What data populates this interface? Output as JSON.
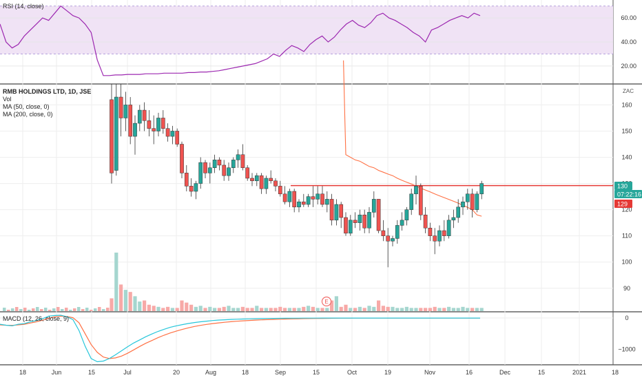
{
  "chart_data": {
    "type": "candlestick",
    "colors": {
      "up": "#26a69a",
      "down": "#ef5350",
      "up_vol": "#a5d6cf",
      "down_vol": "#f7a9a7",
      "rsi_line": "#9c27b0",
      "rsi_band": "#f0e3f5",
      "ma50": "#ff7043",
      "hline": "#e53935",
      "macd": "#26c6da",
      "signal": "#ff7043",
      "last_price_bg": "#26a69a",
      "timer_bg": "#26a69a",
      "prev_bg": "#e53935"
    },
    "main": {
      "legend_title": "RMB HOLDINGS LTD, 1D, JSE",
      "legend_vol": "Vol",
      "legend_ma50": "MA (50, close, 0)",
      "legend_ma200": "MA (200, close, 0)",
      "currency": "ZAC",
      "y_ticks": [
        "160",
        "150",
        "140",
        "130",
        "120",
        "110",
        "100",
        "90"
      ],
      "ylim": [
        81,
        168
      ],
      "horizontal_line": 129.2,
      "last_price": "130",
      "timer": "07:22:16",
      "prev_price": "129",
      "earnings_marker": "E",
      "candles": [
        [
          162,
          169,
          130,
          134
        ],
        [
          135,
          169,
          133,
          163
        ],
        [
          163,
          169,
          148,
          155
        ],
        [
          155,
          165,
          150,
          160
        ],
        [
          160,
          163,
          145,
          148
        ],
        [
          148,
          156,
          141,
          153
        ],
        [
          153,
          160,
          150,
          158
        ],
        [
          158,
          161,
          150,
          154
        ],
        [
          154,
          158,
          148,
          151
        ],
        [
          151,
          156,
          145,
          150
        ],
        [
          150,
          157,
          148,
          155
        ],
        [
          155,
          158,
          149,
          151
        ],
        [
          151,
          153,
          146,
          148
        ],
        [
          148,
          152,
          145,
          150
        ],
        [
          150,
          151,
          144,
          145
        ],
        [
          145,
          146,
          132,
          134
        ],
        [
          134,
          137,
          127,
          129
        ],
        [
          129,
          132,
          125,
          127
        ],
        [
          127,
          131,
          124,
          130
        ],
        [
          130,
          140,
          128,
          138
        ],
        [
          138,
          139,
          132,
          134
        ],
        [
          134,
          138,
          130,
          136
        ],
        [
          136,
          141,
          134,
          139
        ],
        [
          139,
          140,
          135,
          137
        ],
        [
          137,
          139,
          131,
          133
        ],
        [
          133,
          138,
          131,
          136
        ],
        [
          136,
          140,
          134,
          139
        ],
        [
          139,
          143,
          136,
          141
        ],
        [
          141,
          145,
          135,
          136
        ],
        [
          136,
          137,
          131,
          132
        ],
        [
          132,
          134,
          129,
          131
        ],
        [
          131,
          134,
          129,
          133
        ],
        [
          133,
          134,
          126,
          128
        ],
        [
          128,
          133,
          126,
          132
        ],
        [
          132,
          135,
          130,
          131
        ],
        [
          131,
          132,
          127,
          129
        ],
        [
          129,
          131,
          125,
          126
        ],
        [
          126,
          129,
          122,
          123
        ],
        [
          123,
          128,
          121,
          127
        ],
        [
          127,
          128,
          119,
          121
        ],
        [
          121,
          124,
          119,
          123
        ],
        [
          123,
          126,
          121,
          122
        ],
        [
          122,
          126,
          121,
          125
        ],
        [
          125,
          129,
          121,
          124
        ],
        [
          124,
          129,
          122,
          126
        ],
        [
          126,
          129,
          121,
          122
        ],
        [
          122,
          127,
          119,
          124
        ],
        [
          124,
          126,
          114,
          116
        ],
        [
          116,
          124,
          114,
          122
        ],
        [
          122,
          123,
          113,
          117
        ],
        [
          117,
          119,
          110,
          111
        ],
        [
          111,
          118,
          110,
          116
        ],
        [
          116,
          119,
          113,
          115
        ],
        [
          115,
          120,
          112,
          118
        ],
        [
          118,
          120,
          111,
          113
        ],
        [
          113,
          121,
          111,
          119
        ],
        [
          119,
          127,
          117,
          124
        ],
        [
          124,
          124,
          111,
          112
        ],
        [
          112,
          116,
          108,
          110
        ],
        [
          110,
          113,
          98,
          108
        ],
        [
          108,
          110,
          106,
          109
        ],
        [
          109,
          116,
          107,
          114
        ],
        [
          114,
          119,
          112,
          116
        ],
        [
          116,
          121,
          114,
          120
        ],
        [
          120,
          128,
          118,
          126
        ],
        [
          126,
          133,
          122,
          129
        ],
        [
          129,
          130,
          116,
          118
        ],
        [
          118,
          121,
          111,
          113
        ],
        [
          113,
          115,
          108,
          110
        ],
        [
          110,
          113,
          103,
          108
        ],
        [
          108,
          114,
          106,
          112
        ],
        [
          112,
          116,
          108,
          110
        ],
        [
          110,
          118,
          109,
          116
        ],
        [
          116,
          120,
          113,
          117
        ],
        [
          117,
          124,
          115,
          121
        ],
        [
          121,
          125,
          118,
          123
        ],
        [
          123,
          128,
          120,
          126
        ],
        [
          126,
          128,
          117,
          120
        ],
        [
          120,
          127,
          119,
          126
        ],
        [
          126,
          131,
          124,
          130
        ]
      ],
      "volumes": [
        12,
        55,
        25,
        20,
        18,
        14,
        9,
        10,
        6,
        5,
        4,
        3,
        4,
        3,
        3,
        10,
        8,
        6,
        4,
        5,
        3,
        4,
        3,
        3,
        4,
        5,
        3,
        3,
        4,
        3,
        3,
        5,
        3,
        3,
        3,
        3,
        4,
        3,
        3,
        3,
        3,
        4,
        5,
        4,
        3,
        3,
        3,
        10,
        14,
        4,
        6,
        3,
        3,
        4,
        3,
        5,
        4,
        10,
        5,
        4,
        4,
        3,
        3,
        4,
        3,
        3,
        3,
        3,
        3,
        4,
        3,
        3,
        4,
        3,
        3,
        4,
        3,
        3,
        3,
        3
      ],
      "vol_max": 55,
      "ma50": [
        null,
        null,
        null,
        null,
        null,
        null,
        null,
        null,
        null,
        null,
        null,
        null,
        null,
        null,
        null,
        null,
        null,
        null,
        null,
        null,
        null,
        null,
        null,
        null,
        null,
        null,
        null,
        null,
        null,
        null,
        null,
        null,
        null,
        null,
        null,
        null,
        null,
        null,
        null,
        null,
        null,
        null,
        null,
        null,
        null,
        null,
        null,
        null,
        null,
        null,
        141,
        140,
        139,
        138.5,
        137.5,
        136.5,
        136,
        135,
        134.3,
        133.6,
        133,
        132,
        131.2,
        130.5,
        129.8,
        129,
        128.2,
        127.5,
        126.8,
        126,
        125.3,
        124.6,
        123.9,
        123.2,
        122.5,
        121.7,
        120.9,
        120,
        118,
        117.5
      ],
      "ma50_spike": [
        177,
        155
      ]
    },
    "rsi": {
      "legend": "RSI (14, close)",
      "y_ticks": [
        "60.00",
        "40.00",
        "20.00"
      ],
      "ylim": [
        5,
        75
      ],
      "band": [
        30,
        70
      ],
      "values": [
        55,
        40,
        35,
        38,
        45,
        50,
        55,
        60,
        58,
        64,
        70,
        66,
        62,
        60,
        55,
        48,
        25,
        12,
        12,
        12.5,
        12.5,
        13,
        13,
        13,
        13.5,
        13.5,
        13.5,
        14,
        14,
        14,
        14,
        14.5,
        14.5,
        15,
        15,
        15.5,
        16,
        17,
        18,
        19,
        20,
        21,
        22,
        24,
        26,
        30,
        28,
        33,
        37,
        35,
        32,
        38,
        42,
        45,
        40,
        44,
        50,
        55,
        58,
        54,
        52,
        56,
        62,
        64,
        60,
        58,
        55,
        52,
        48,
        45,
        40,
        50,
        52,
        55,
        58,
        60,
        62,
        60,
        64,
        62
      ]
    },
    "macd": {
      "legend": "MACD (12, 26, close, 9)",
      "y_ticks": [
        "0",
        "−1000"
      ],
      "ylim": [
        -1500,
        200
      ],
      "macd": [
        -200,
        -230,
        -250,
        -200,
        -180,
        -120,
        -80,
        -20,
        60,
        80,
        90,
        40,
        -50,
        -400,
        -900,
        -1300,
        -1400,
        -1380,
        -1300,
        -1180,
        -1050,
        -920,
        -800,
        -700,
        -600,
        -510,
        -430,
        -360,
        -300,
        -250,
        -210,
        -175,
        -145,
        -120,
        -100,
        -80,
        -65,
        -55,
        -45,
        -38,
        -32,
        -27,
        -22,
        -18,
        -14,
        -11,
        -9,
        -7,
        -6,
        -5,
        -4,
        -3,
        -3,
        -2,
        -2,
        -1,
        -1,
        0,
        0,
        0,
        0,
        0,
        0,
        0,
        0,
        0,
        0,
        0,
        0,
        0,
        0,
        0,
        0,
        0,
        0,
        0,
        0,
        0,
        0,
        0
      ],
      "signal": [
        -220,
        -230,
        -235,
        -220,
        -200,
        -160,
        -120,
        -70,
        -10,
        40,
        60,
        50,
        10,
        -150,
        -500,
        -850,
        -1100,
        -1250,
        -1300,
        -1280,
        -1220,
        -1130,
        -1020,
        -910,
        -810,
        -720,
        -630,
        -550,
        -480,
        -420,
        -365,
        -315,
        -270,
        -235,
        -205,
        -178,
        -155,
        -135,
        -118,
        -103,
        -90,
        -78,
        -68,
        -59,
        -51,
        -44,
        -38,
        -32,
        -27,
        -23,
        -19,
        -16,
        -13,
        -11,
        -9,
        -7,
        -6,
        -5,
        -4,
        -3,
        -2,
        -2,
        -1,
        -1,
        0,
        0,
        0,
        0,
        0,
        0,
        0,
        0,
        0,
        0,
        0,
        0,
        0,
        0,
        0,
        0
      ]
    },
    "x_labels": [
      "18",
      "Jun",
      "15",
      "Jul",
      "20",
      "Aug",
      "18",
      "Sep",
      "15",
      "Oct",
      "19",
      "Nov",
      "16",
      "Dec",
      "15",
      "2021",
      "18"
    ]
  }
}
